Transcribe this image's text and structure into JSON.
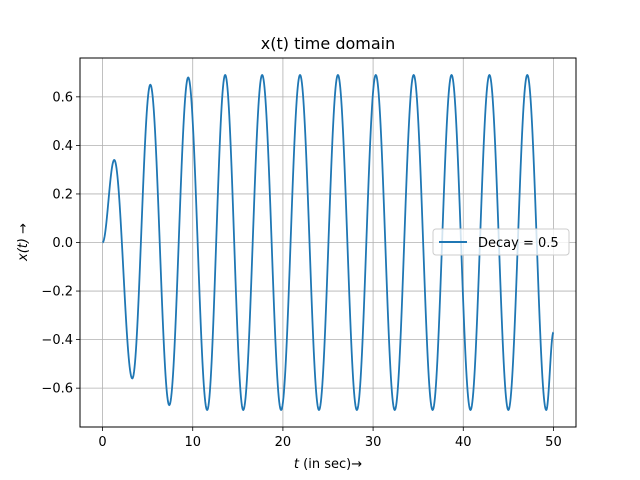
{
  "chart_data": {
    "type": "line",
    "title": "x(t) time domain",
    "xlabel_math": "t",
    "xlabel_rest": " (in sec)→",
    "ylabel_math": "x(t)",
    "ylabel_rest": " →",
    "xlim": [
      -2.5,
      52.5
    ],
    "ylim": [
      -0.76,
      0.76
    ],
    "x_ticks": [
      0,
      10,
      20,
      30,
      40,
      50
    ],
    "x_tick_labels": [
      "0",
      "10",
      "20",
      "30",
      "40",
      "50"
    ],
    "y_ticks": [
      -0.6,
      -0.4,
      -0.2,
      0.0,
      0.2,
      0.4,
      0.6
    ],
    "y_tick_labels": [
      "−0.6",
      "−0.4",
      "−0.2",
      "0.0",
      "0.2",
      "0.4",
      "0.6"
    ],
    "grid": true,
    "legend_position": "center-right",
    "color": "#1f77b4",
    "series": [
      {
        "name": "Decay = 0.5",
        "x": [
          0,
          1.3,
          3.3,
          5.3,
          7.4,
          9.5,
          11.6,
          13.6,
          15.6,
          17.7,
          19.8,
          21.9,
          24.0,
          26.1,
          28.2,
          30.3,
          32.4,
          34.5,
          36.6,
          38.7,
          40.8,
          42.9,
          45.0,
          47.1,
          49.2,
          50.0
        ],
        "values": [
          0.0,
          0.34,
          -0.56,
          0.65,
          -0.67,
          0.68,
          -0.69,
          0.69,
          -0.69,
          0.69,
          -0.69,
          0.69,
          -0.69,
          0.69,
          -0.69,
          0.69,
          -0.69,
          0.69,
          -0.69,
          0.69,
          -0.69,
          0.69,
          -0.69,
          0.69,
          -0.69,
          -0.37
        ]
      }
    ]
  }
}
